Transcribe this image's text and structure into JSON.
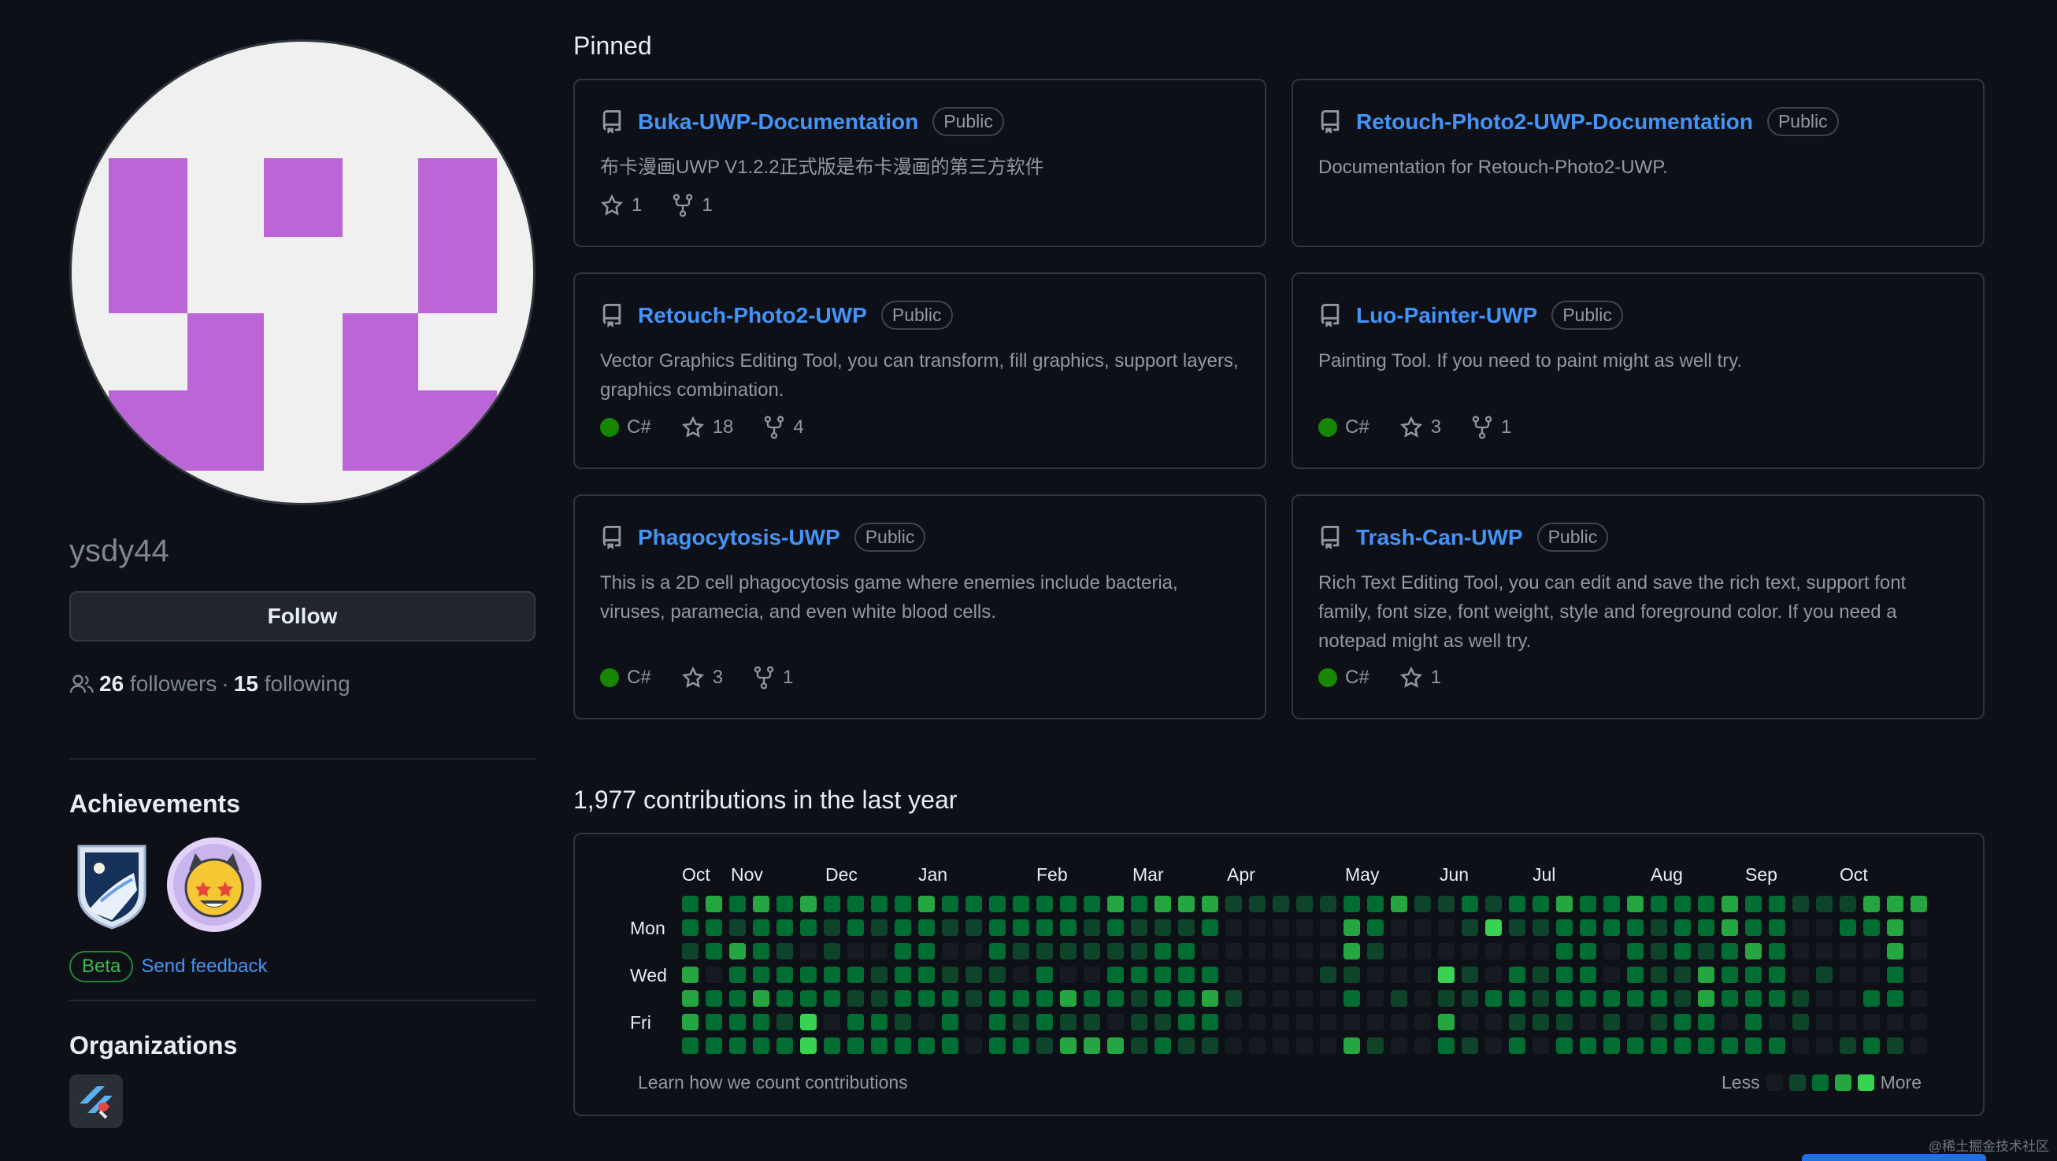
{
  "profile": {
    "username": "ysdy44",
    "follow_label": "Follow",
    "followers_count": "26",
    "followers_label": "followers",
    "separator": "·",
    "following_count": "15",
    "following_label": "following",
    "avatar_color": "#bc65d6"
  },
  "achievements": {
    "title": "Achievements",
    "beta_label": "Beta",
    "feedback_label": "Send feedback"
  },
  "organizations": {
    "title": "Organizations"
  },
  "pinned": {
    "title": "Pinned",
    "cards": [
      {
        "name": "Buka-UWP-Documentation",
        "visibility": "Public",
        "description": "布卡漫画UWP V1.2.2正式版是布卡漫画的第三方软件",
        "language": "",
        "stars": "1",
        "forks": "1"
      },
      {
        "name": "Retouch-Photo2-UWP-Documentation",
        "visibility": "Public",
        "description": "Documentation for Retouch-Photo2-UWP.",
        "language": "",
        "stars": "",
        "forks": ""
      },
      {
        "name": "Retouch-Photo2-UWP",
        "visibility": "Public",
        "description": "Vector Graphics Editing Tool, you can transform, fill graphics, support layers, graphics combination.",
        "language": "C#",
        "stars": "18",
        "forks": "4"
      },
      {
        "name": "Luo-Painter-UWP",
        "visibility": "Public",
        "description": "Painting Tool. If you need to paint might as well try.",
        "language": "C#",
        "stars": "3",
        "forks": "1"
      },
      {
        "name": "Phagocytosis-UWP",
        "visibility": "Public",
        "description": "This is a 2D cell phagocytosis game where enemies include bacteria, viruses, paramecia, and even white blood cells.",
        "language": "C#",
        "stars": "3",
        "forks": "1"
      },
      {
        "name": "Trash-Can-UWP",
        "visibility": "Public",
        "description": "Rich Text Editing Tool, you can edit and save the rich text, support font family, font size, font weight, style and foreground color. If you need a notepad might as well try.",
        "language": "C#",
        "stars": "1",
        "forks": ""
      }
    ]
  },
  "contributions": {
    "title": "1,977 contributions in the last year",
    "months": [
      "Oct",
      "Nov",
      "Dec",
      "Jan",
      "Feb",
      "Mar",
      "Apr",
      "May",
      "Jun",
      "Jul",
      "Aug",
      "Sep",
      "Oct"
    ],
    "days": [
      "Mon",
      "Wed",
      "Fri"
    ],
    "learn_label": "Learn how we count contributions",
    "less_label": "Less",
    "more_label": "More",
    "level_colors": [
      "#161b22",
      "#0e4429",
      "#006d32",
      "#26a641",
      "#39d353"
    ],
    "weeks": 53,
    "weekly_levels": [
      "2213332",
      "3220222",
      "2132222",
      "3222322",
      "2212212",
      "3202244",
      "2112202",
      "2202122",
      "2101122",
      "2222212",
      "3222202",
      "2101222",
      "2101100",
      "2221222",
      "2210212",
      "2212221",
      "2210313",
      "2110213",
      "3212203",
      "2112111",
      "3122212",
      "3122221",
      "3202321",
      "1000100",
      "1000000",
      "1000000",
      "1000000",
      "1001000",
      "2331203",
      "2210001",
      "3000100",
      "1000000",
      "1004132",
      "2101101",
      "1400200",
      "2102212",
      "2101110",
      "3222212",
      "2222202",
      "2200212",
      "3222202",
      "2111212",
      "2221122",
      "2213322",
      "3322202",
      "2232222",
      "2222202",
      "1000110",
      "1001000",
      "1200001",
      "3200202",
      "3332201",
      "3000000"
    ]
  },
  "watermark": "@稀土掘金技术社区"
}
